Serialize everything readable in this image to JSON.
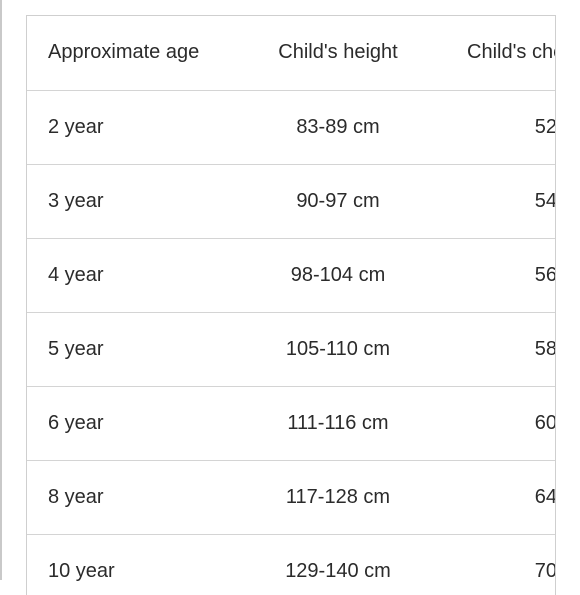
{
  "table": {
    "headers": {
      "age": "Approximate age",
      "height": "Child's height",
      "chest": "Child's chest"
    },
    "rows": [
      {
        "age": "2 year",
        "height": "83-89 cm",
        "chest": "52"
      },
      {
        "age": "3 year",
        "height": "90-97 cm",
        "chest": "54"
      },
      {
        "age": "4 year",
        "height": "98-104 cm",
        "chest": "56"
      },
      {
        "age": "5 year",
        "height": "105-110 cm",
        "chest": "58"
      },
      {
        "age": "6 year",
        "height": "111-116 cm",
        "chest": "60"
      },
      {
        "age": "8 year",
        "height": "117-128 cm",
        "chest": "64"
      },
      {
        "age": "10 year",
        "height": "129-140 cm",
        "chest": "70"
      }
    ]
  }
}
